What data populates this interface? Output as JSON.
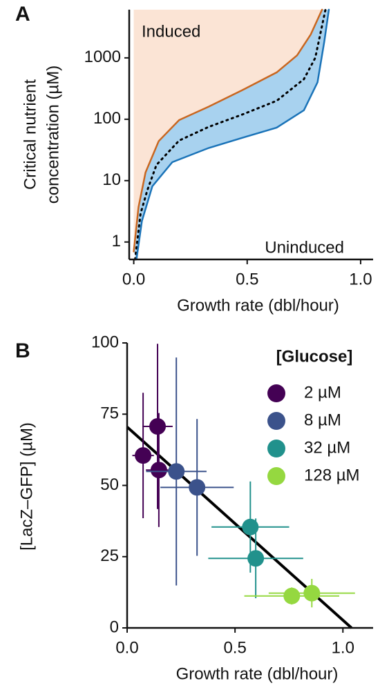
{
  "chart_data": [
    {
      "type": "line",
      "panel": "A",
      "xlabel": "Growth rate (dbl/hour)",
      "ylabel": [
        "Critical nutrient",
        "concentration (µM)"
      ],
      "annotations": [
        "Induced",
        "Uninduced"
      ],
      "xlim": [
        -0.02,
        1.055
      ],
      "ylim": [
        0.52,
        6100
      ],
      "log_y": true,
      "xticks": [
        {
          "value": 0,
          "label": "0.0"
        },
        0.5,
        {
          "value": 1,
          "label": "1.0"
        }
      ],
      "yticks": [
        1,
        10,
        100,
        1000
      ],
      "induced_color": "#fbe4d5",
      "band_color": "#a8d2ef",
      "series": [
        {
          "color": "#c9661f",
          "style": "solid",
          "x": [
            0,
            0.021,
            0.052,
            0.11,
            0.2,
            0.33,
            0.48,
            0.63,
            0.72,
            0.78,
            0.83
          ],
          "values": [
            0.7,
            3.7,
            13.6,
            44,
            97,
            160,
            300,
            580,
            1100,
            2400,
            6100
          ]
        },
        {
          "color": "#000000",
          "style": "dotted",
          "x": [
            0.006,
            0.03,
            0.06,
            0.1,
            0.2,
            0.33,
            0.48,
            0.63,
            0.75,
            0.8,
            0.845
          ],
          "values": [
            0.52,
            2.9,
            7,
            18,
            45,
            75,
            120,
            200,
            450,
            1000,
            6100
          ]
        },
        {
          "color": "#1a73b8",
          "style": "solid",
          "x": [
            0.012,
            0.036,
            0.082,
            0.17,
            0.33,
            0.48,
            0.63,
            0.75,
            0.81,
            0.84,
            0.86
          ],
          "values": [
            0.52,
            2.2,
            8.1,
            20,
            34,
            50,
            73,
            140,
            400,
            1860,
            6100
          ]
        }
      ]
    },
    {
      "type": "scatter",
      "panel": "B",
      "xlabel": "Growth rate (dbl/hour)",
      "ylabel": [
        "[LacZ–GFP] (µM)"
      ],
      "legend_title": "[Glucose]",
      "legend": "upper right",
      "xlim": [
        0,
        1.14
      ],
      "ylim": [
        0,
        100
      ],
      "xticks": [
        {
          "value": 0,
          "label": "0.0"
        },
        0.5,
        {
          "value": 1,
          "label": "1.0"
        }
      ],
      "yticks": [
        0,
        25,
        50,
        75,
        100
      ],
      "series": [
        {
          "name": "2 µM",
          "color": "#440154",
          "x": [
            0.074,
            0.141,
            0.147
          ],
          "values": [
            60.5,
            70.7,
            55.4
          ],
          "xerr": [
            0.05,
            0.07,
            0.06
          ],
          "yerr": [
            22,
            29,
            20
          ]
        },
        {
          "name": "8 µM",
          "color": "#3b528b",
          "x": [
            0.228,
            0.324
          ],
          "values": [
            54.9,
            49.3
          ],
          "xerr": [
            0.14,
            0.17
          ],
          "yerr": [
            40,
            24
          ]
        },
        {
          "name": "32 µM",
          "color": "#21918c",
          "x": [
            0.571,
            0.596
          ],
          "values": [
            35.4,
            24.4
          ],
          "xerr": [
            0.18,
            0.22
          ],
          "yerr": [
            16,
            14
          ]
        },
        {
          "name": "128 µM",
          "color": "#95d840",
          "x": [
            0.763,
            0.856
          ],
          "values": [
            11.2,
            12.2
          ],
          "xerr": [
            0.22,
            0.2
          ],
          "yerr": [
            3,
            5
          ]
        }
      ],
      "fit": {
        "color": "#000000",
        "x": [
          0,
          1.04
        ],
        "values": [
          70.5,
          0
        ]
      }
    }
  ]
}
